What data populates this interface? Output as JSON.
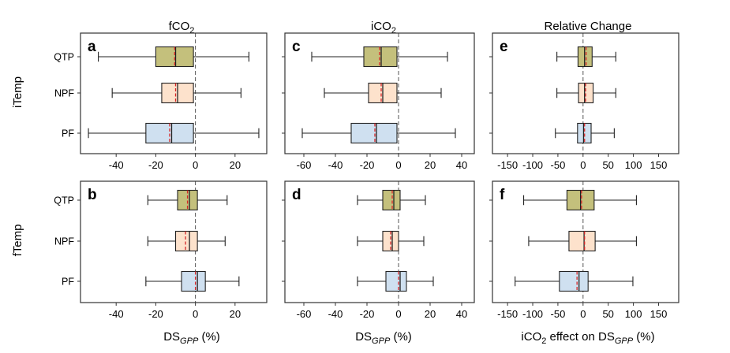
{
  "chart_data": {
    "type": "boxplot",
    "columns": [
      {
        "title_main": "fCO",
        "title_sub": "2",
        "title_after": ""
      },
      {
        "title_main": "iCO",
        "title_sub": "2",
        "title_after": ""
      },
      {
        "title_main": "Relative Change",
        "title_sub": "",
        "title_after": ""
      }
    ],
    "rows": [
      {
        "title": "iTemp"
      },
      {
        "title": "fTemp"
      }
    ],
    "xaxis_labels": [
      {
        "main": "DS",
        "sub": "GPP",
        "after": " (%)",
        "pre": "",
        "presub": ""
      },
      {
        "main": "DS",
        "sub": "GPP",
        "after": " (%)",
        "pre": "",
        "presub": ""
      },
      {
        "main": "DS",
        "sub": "GPP",
        "after": " (%)",
        "pre": "iCO",
        "presub": "2",
        "mid": " effect on "
      }
    ],
    "categories": [
      "QTP",
      "NPF",
      "PF"
    ],
    "colors": {
      "QTP": "#c4c07c",
      "NPF": "#fde2cc",
      "PF": "#cfe0f0",
      "mean": "#d62728"
    },
    "panels": [
      {
        "letter": "a",
        "row": 0,
        "col": 0,
        "xlim": [
          -58,
          36
        ],
        "ticks": [
          -40,
          -20,
          0,
          20
        ],
        "tick_labels": [
          "-40",
          "-20",
          "0",
          "20"
        ],
        "boxes": [
          {
            "category": "QTP",
            "whislo": -49,
            "q1": -20,
            "med": -10,
            "mean": -10.5,
            "q3": -1,
            "whishi": 27
          },
          {
            "category": "NPF",
            "whislo": -42,
            "q1": -17,
            "med": -9,
            "mean": -10,
            "q3": -1,
            "whishi": 23
          },
          {
            "category": "PF",
            "whislo": -54,
            "q1": -25,
            "med": -12,
            "mean": -13,
            "q3": -1,
            "whishi": 32
          }
        ]
      },
      {
        "letter": "c",
        "row": 0,
        "col": 1,
        "xlim": [
          -72,
          48
        ],
        "ticks": [
          -60,
          -40,
          -20,
          0,
          20,
          40
        ],
        "tick_labels": [
          "-60",
          "-40",
          "-20",
          "0",
          "20",
          "40"
        ],
        "boxes": [
          {
            "category": "QTP",
            "whislo": -55,
            "q1": -22,
            "med": -11,
            "mean": -12,
            "q3": -1,
            "whishi": 31
          },
          {
            "category": "NPF",
            "whislo": -47,
            "q1": -19,
            "med": -10,
            "mean": -11,
            "q3": -1,
            "whishi": 27
          },
          {
            "category": "PF",
            "whislo": -61,
            "q1": -30,
            "med": -14,
            "mean": -15,
            "q3": -1,
            "whishi": 36
          }
        ]
      },
      {
        "letter": "e",
        "row": 0,
        "col": 2,
        "xlim": [
          -180,
          190
        ],
        "ticks": [
          -150,
          -100,
          -50,
          0,
          50,
          100,
          150
        ],
        "tick_labels": [
          "-150",
          "-100",
          "-50",
          "0",
          "50",
          "100",
          "150"
        ],
        "boxes": [
          {
            "category": "QTP",
            "whislo": -52,
            "q1": -10,
            "med": 3,
            "mean": 6,
            "q3": 18,
            "whishi": 65
          },
          {
            "category": "NPF",
            "whislo": -52,
            "q1": -9,
            "med": 3,
            "mean": 5,
            "q3": 20,
            "whishi": 65
          },
          {
            "category": "PF",
            "whislo": -55,
            "q1": -11,
            "med": 1,
            "mean": 3,
            "q3": 16,
            "whishi": 62
          }
        ]
      },
      {
        "letter": "b",
        "row": 1,
        "col": 0,
        "xlim": [
          -58,
          36
        ],
        "ticks": [
          -40,
          -20,
          0,
          20
        ],
        "tick_labels": [
          "-40",
          "-20",
          "0",
          "20"
        ],
        "boxes": [
          {
            "category": "QTP",
            "whislo": -24,
            "q1": -9,
            "med": -3,
            "mean": -4,
            "q3": 1,
            "whishi": 16
          },
          {
            "category": "NPF",
            "whislo": -24,
            "q1": -10,
            "med": -3,
            "mean": -5,
            "q3": 1,
            "whishi": 15
          },
          {
            "category": "PF",
            "whislo": -25,
            "q1": -7,
            "med": 1,
            "mean": 0,
            "q3": 5,
            "whishi": 22
          }
        ]
      },
      {
        "letter": "d",
        "row": 1,
        "col": 1,
        "xlim": [
          -72,
          48
        ],
        "ticks": [
          -60,
          -40,
          -20,
          0,
          20,
          40
        ],
        "tick_labels": [
          "-60",
          "-40",
          "-20",
          "0",
          "20",
          "40"
        ],
        "boxes": [
          {
            "category": "QTP",
            "whislo": -26,
            "q1": -10,
            "med": -3,
            "mean": -4,
            "q3": 1,
            "whishi": 17
          },
          {
            "category": "NPF",
            "whislo": -26,
            "q1": -10,
            "med": -4,
            "mean": -5,
            "q3": 0,
            "whishi": 16
          },
          {
            "category": "PF",
            "whislo": -26,
            "q1": -8,
            "med": 1,
            "mean": 0,
            "q3": 5,
            "whishi": 22
          }
        ]
      },
      {
        "letter": "f",
        "row": 1,
        "col": 2,
        "xlim": [
          -180,
          190
        ],
        "ticks": [
          -150,
          -100,
          -50,
          0,
          50,
          100,
          150
        ],
        "tick_labels": [
          "-150",
          "-100",
          "-50",
          "0",
          "50",
          "100",
          "150"
        ],
        "boxes": [
          {
            "category": "QTP",
            "whislo": -118,
            "q1": -32,
            "med": -5,
            "mean": -3,
            "q3": 22,
            "whishi": 106
          },
          {
            "category": "NPF",
            "whislo": -108,
            "q1": -28,
            "med": 2,
            "mean": 3,
            "q3": 24,
            "whishi": 106
          },
          {
            "category": "PF",
            "whislo": -135,
            "q1": -47,
            "med": -8,
            "mean": -12,
            "q3": 10,
            "whishi": 99
          }
        ]
      }
    ]
  }
}
